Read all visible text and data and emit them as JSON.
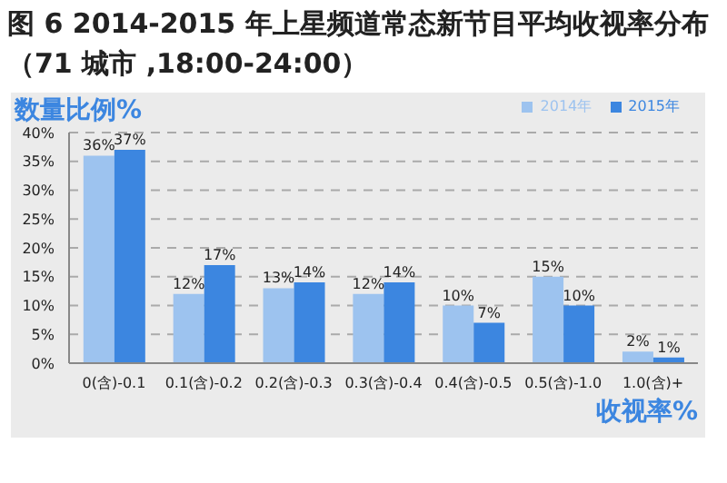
{
  "chart_data": {
    "type": "bar",
    "title": "图 6  2014-2015 年上星频道常态新节目平均收视率分布（71 城市 ,18:00-24:00）",
    "xlabel": "收视率%",
    "ylabel": "数量比例%",
    "categories": [
      "0(含)-0.1",
      "0.1(含)-0.2",
      "0.2(含)-0.3",
      "0.3(含)-0.4",
      "0.4(含)-0.5",
      "0.5(含)-1.0",
      "1.0(含)+"
    ],
    "series": [
      {
        "name": "2014年",
        "color": "#9dc3ef",
        "values": [
          36,
          12,
          13,
          12,
          10,
          15,
          2
        ],
        "value_labels": [
          "36%",
          "12%",
          "13%",
          "12%",
          "10%",
          "15%",
          "2%"
        ]
      },
      {
        "name": "2015年",
        "color": "#3c86e0",
        "values": [
          37,
          17,
          14,
          14,
          7,
          10,
          1
        ],
        "value_labels": [
          "37%",
          "17%",
          "14%",
          "14%",
          "7%",
          "10%",
          "1%"
        ]
      }
    ],
    "ylim": [
      0,
      40
    ],
    "yticks": [
      {
        "value": 0,
        "label": "0%"
      },
      {
        "value": 5,
        "label": "5%"
      },
      {
        "value": 10,
        "label": "10%"
      },
      {
        "value": 15,
        "label": "15%"
      },
      {
        "value": 20,
        "label": "20%"
      },
      {
        "value": 25,
        "label": "25%"
      },
      {
        "value": 30,
        "label": "30%"
      },
      {
        "value": 35,
        "label": "35%"
      },
      {
        "value": 40,
        "label": "40%"
      }
    ],
    "grid": "y",
    "legend": "top right"
  }
}
